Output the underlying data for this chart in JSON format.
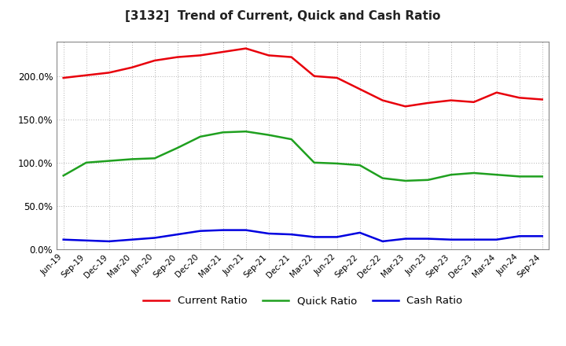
{
  "title": "[3132]  Trend of Current, Quick and Cash Ratio",
  "x_labels": [
    "Jun-19",
    "Sep-19",
    "Dec-19",
    "Mar-20",
    "Jun-20",
    "Sep-20",
    "Dec-20",
    "Mar-21",
    "Jun-21",
    "Sep-21",
    "Dec-21",
    "Mar-22",
    "Jun-22",
    "Sep-22",
    "Dec-22",
    "Mar-23",
    "Jun-23",
    "Sep-23",
    "Dec-23",
    "Mar-24",
    "Jun-24",
    "Sep-24"
  ],
  "current_ratio": [
    198,
    201,
    204,
    210,
    218,
    222,
    224,
    228,
    232,
    224,
    222,
    200,
    198,
    185,
    172,
    165,
    169,
    172,
    170,
    181,
    175,
    173
  ],
  "quick_ratio": [
    85,
    100,
    102,
    104,
    105,
    117,
    130,
    135,
    136,
    132,
    127,
    100,
    99,
    97,
    82,
    79,
    80,
    86,
    88,
    86,
    84,
    84
  ],
  "cash_ratio": [
    11,
    10,
    9,
    11,
    13,
    17,
    21,
    22,
    22,
    18,
    17,
    14,
    14,
    19,
    9,
    12,
    12,
    11,
    11,
    11,
    15,
    15
  ],
  "current_color": "#e8000b",
  "quick_color": "#1fa01f",
  "cash_color": "#0000e0",
  "background_color": "#ffffff",
  "grid_color": "#b0b0b0",
  "ylim": [
    0,
    240
  ],
  "yticks": [
    0.0,
    50.0,
    100.0,
    150.0,
    200.0
  ],
  "line_width": 1.8
}
